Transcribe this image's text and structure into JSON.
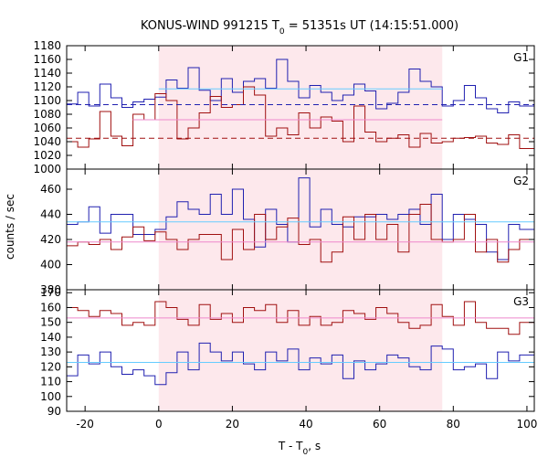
{
  "chart_data": {
    "type": "line",
    "title_main": "KONUS-WIND 991215 T",
    "title_sub": "0",
    "title_rest": " = 51351s UT (14:15:51.000)",
    "xlabel_main": "T - T",
    "xlabel_sub": "0",
    "xlabel_rest": ", s",
    "ylabel": "counts / sec",
    "xlim": [
      -25,
      102
    ],
    "xticks": [
      -20,
      0,
      20,
      40,
      60,
      80,
      100
    ],
    "xtick_labels": [
      "-20",
      "0",
      "20",
      "40",
      "60",
      "80",
      "100"
    ],
    "shaded_interval": [
      0,
      77
    ],
    "colors": {
      "blue": "#2020b0",
      "red": "#a01010",
      "light_blue": "#66ccff",
      "pink": "#ee88cc",
      "shade": "#fde8ec"
    },
    "bin_x": [
      -25,
      -22,
      -19,
      -16,
      -13,
      -10,
      -7,
      -4,
      -1,
      2,
      5,
      8,
      11,
      14,
      17,
      20,
      23,
      26,
      29,
      32,
      35,
      38,
      41,
      44,
      47,
      50,
      53,
      56,
      59,
      62,
      65,
      68,
      71,
      74,
      77,
      80,
      83,
      86,
      89,
      92,
      95,
      98
    ],
    "panels": [
      {
        "label": "G1",
        "ylim": [
          1000,
          1180
        ],
        "yticks": [
          1000,
          1020,
          1040,
          1060,
          1080,
          1100,
          1120,
          1140,
          1160,
          1180
        ],
        "ytick_labels": [
          "1000",
          "1020",
          "1040",
          "1060",
          "1080",
          "1100",
          "1120",
          "1140",
          "1160",
          "1180"
        ],
        "series": [
          {
            "color_key": "blue",
            "values": [
              1095,
              1112,
              1092,
              1124,
              1104,
              1090,
              1098,
              1102,
              1105,
              1130,
              1118,
              1148,
              1115,
              1100,
              1132,
              1112,
              1128,
              1132,
              1118,
              1160,
              1128,
              1104,
              1122,
              1112,
              1100,
              1108,
              1124,
              1114,
              1088,
              1096,
              1112,
              1146,
              1128,
              1120,
              1092,
              1100,
              1122,
              1104,
              1088,
              1082,
              1098,
              1092
            ]
          },
          {
            "color_key": "red",
            "values": [
              1040,
              1032,
              1044,
              1084,
              1048,
              1034,
              1080,
              1072,
              1110,
              1100,
              1044,
              1060,
              1082,
              1106,
              1090,
              1094,
              1120,
              1108,
              1048,
              1060,
              1050,
              1082,
              1060,
              1076,
              1070,
              1040,
              1092,
              1054,
              1040,
              1045,
              1050,
              1032,
              1052,
              1038,
              1040,
              1045,
              1046,
              1048,
              1038,
              1036,
              1050,
              1030
            ]
          }
        ],
        "mean_lines": [
          {
            "color_key": "light_blue",
            "dashed": false,
            "x": [
              0,
              77
            ],
            "y": 1117
          },
          {
            "color_key": "pink",
            "dashed": false,
            "x": [
              -7,
              77
            ],
            "y": 1072
          },
          {
            "color_key": "blue",
            "dashed": true,
            "x": [
              -25,
              102
            ],
            "y": 1094
          },
          {
            "color_key": "red",
            "dashed": true,
            "x": [
              -25,
              102
            ],
            "y": 1045
          }
        ]
      },
      {
        "label": "G2",
        "ylim": [
          380,
          476
        ],
        "yticks": [
          380,
          400,
          420,
          440,
          460
        ],
        "ytick_labels": [
          "380",
          "400",
          "420",
          "440",
          "460"
        ],
        "series": [
          {
            "color_key": "blue",
            "values": [
              432,
              434,
              446,
              425,
              440,
              440,
              424,
              424,
              428,
              438,
              450,
              444,
              440,
              456,
              440,
              460,
              436,
              414,
              444,
              432,
              418,
              469,
              430,
              444,
              432,
              430,
              438,
              438,
              440,
              436,
              440,
              444,
              432,
              456,
              420,
              440,
              436,
              432,
              410,
              404,
              432,
              428
            ]
          },
          {
            "color_key": "red",
            "values": [
              415,
              418,
              416,
              420,
              412,
              422,
              430,
              419,
              426,
              420,
              412,
              420,
              424,
              424,
              404,
              428,
              412,
              440,
              420,
              430,
              437,
              416,
              420,
              402,
              410,
              438,
              420,
              440,
              420,
              432,
              410,
              440,
              448,
              420,
              418,
              420,
              440,
              410,
              420,
              402,
              412,
              420
            ]
          }
        ],
        "mean_lines": [
          {
            "color_key": "light_blue",
            "dashed": false,
            "x": [
              -25,
              102
            ],
            "y": 434
          },
          {
            "color_key": "pink",
            "dashed": false,
            "x": [
              -25,
              102
            ],
            "y": 418
          }
        ]
      },
      {
        "label": "G3",
        "ylim": [
          90,
          172
        ],
        "yticks": [
          90,
          100,
          110,
          120,
          130,
          140,
          150,
          160,
          170
        ],
        "ytick_labels": [
          "90",
          "100",
          "110",
          "120",
          "130",
          "140",
          "150",
          "160",
          "170"
        ],
        "series": [
          {
            "color_key": "blue",
            "values": [
              114,
              128,
              122,
              130,
              120,
              115,
              118,
              114,
              108,
              116,
              130,
              118,
              136,
              130,
              124,
              130,
              122,
              118,
              130,
              124,
              132,
              118,
              126,
              122,
              128,
              112,
              124,
              118,
              122,
              128,
              126,
              120,
              118,
              134,
              132,
              118,
              120,
              122,
              112,
              130,
              124,
              128
            ]
          },
          {
            "color_key": "red",
            "values": [
              160,
              158,
              154,
              158,
              156,
              148,
              150,
              148,
              164,
              160,
              152,
              148,
              162,
              152,
              156,
              150,
              160,
              158,
              162,
              150,
              158,
              148,
              154,
              148,
              150,
              158,
              156,
              152,
              160,
              156,
              150,
              146,
              148,
              162,
              154,
              148,
              164,
              150,
              146,
              146,
              142,
              150
            ]
          }
        ],
        "mean_lines": [
          {
            "color_key": "light_blue",
            "dashed": false,
            "x": [
              -25,
              102
            ],
            "y": 123
          },
          {
            "color_key": "pink",
            "dashed": false,
            "x": [
              -25,
              102
            ],
            "y": 153
          }
        ]
      }
    ]
  }
}
